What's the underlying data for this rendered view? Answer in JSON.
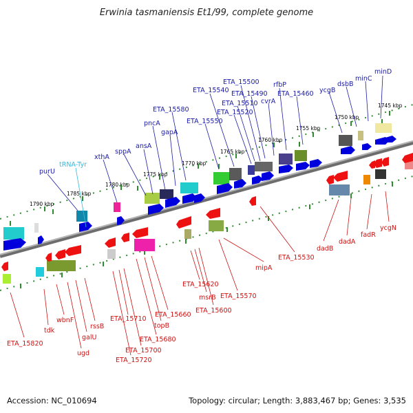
{
  "title": "Erwinia tasmaniensis Et1/99, complete genome",
  "footer": {
    "accession": "Accession: NC_010694",
    "topology": "Topology: circular; Length: 3,883,467 bp; Genes: 3,535"
  },
  "colors": {
    "top_label": "#1a1aa6",
    "trna_label": "#33bbdd",
    "bottom_label": "#cc1111",
    "backbone": "#8a8a8a",
    "ticks": "#2e8b2e"
  },
  "ticks": [
    "1745 kbp",
    "1750 kbp",
    "1755 kbp",
    "1760 kbp",
    "1765 kbp",
    "1770 kbp",
    "1775 kbp",
    "1780 kbp",
    "1785 kbp",
    "1790 kbp"
  ],
  "top_genes": [
    "minD",
    "minC",
    "dsbB",
    "ycgB",
    "ETA_15460",
    "rfbP",
    "cvrA",
    "ETA_15490",
    "ETA_15500",
    "ETA_15510",
    "ETA_15520",
    "ETA_15540",
    "ETA_15550",
    "ETA_15580",
    "gapA",
    "pncA",
    "ansA",
    "sppA",
    "xthA",
    "tRNA-Tyr",
    "purU"
  ],
  "bottom_genes": [
    "ycgN",
    "fadR",
    "dadA",
    "dadB",
    "ETA_15530",
    "mipA",
    "ETA_15570",
    "ETA_15600",
    "msrB",
    "ETA_15620",
    "ETA_15660",
    "topB",
    "ETA_15680",
    "ETA_15700",
    "ETA_15710",
    "ETA_15720",
    "rssB",
    "galU",
    "ugd",
    "wbnF",
    "tdk",
    "ETA_15820"
  ]
}
